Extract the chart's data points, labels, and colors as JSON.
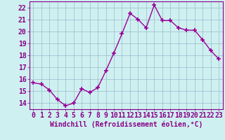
{
  "x": [
    0,
    1,
    2,
    3,
    4,
    5,
    6,
    7,
    8,
    9,
    10,
    11,
    12,
    13,
    14,
    15,
    16,
    17,
    18,
    19,
    20,
    21,
    22,
    23
  ],
  "y": [
    15.7,
    15.6,
    15.1,
    14.3,
    13.8,
    14.0,
    15.2,
    14.9,
    15.3,
    16.7,
    18.2,
    19.8,
    21.5,
    21.0,
    20.3,
    22.2,
    20.9,
    20.9,
    20.3,
    20.1,
    20.1,
    19.3,
    18.4,
    17.7
  ],
  "line_color": "#990099",
  "marker": "+",
  "marker_size": 5,
  "bg_color": "#cff0f0",
  "grid_color": "#99bbcc",
  "xlabel": "Windchill (Refroidissement éolien,°C)",
  "xlabel_color": "#880088",
  "tick_color": "#880088",
  "label_color": "#880088",
  "ylim": [
    13.5,
    22.5
  ],
  "xlim": [
    -0.5,
    23.5
  ],
  "yticks": [
    14,
    15,
    16,
    17,
    18,
    19,
    20,
    21,
    22
  ],
  "xticks": [
    0,
    1,
    2,
    3,
    4,
    5,
    6,
    7,
    8,
    9,
    10,
    11,
    12,
    13,
    14,
    15,
    16,
    17,
    18,
    19,
    20,
    21,
    22,
    23
  ],
  "tick_fontsize": 7,
  "xlabel_fontsize": 7
}
